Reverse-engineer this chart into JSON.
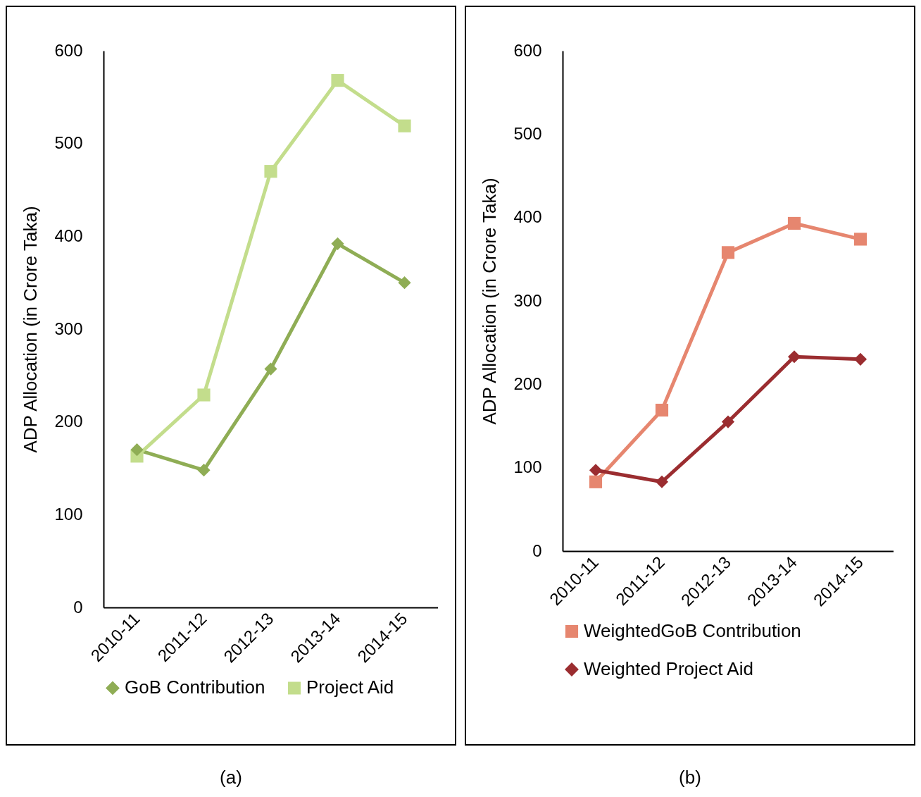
{
  "chart_data": [
    {
      "type": "line",
      "ylabel": "ADP Allocation (in Crore Taka)",
      "categories": [
        "2010-11",
        "2011-12",
        "2012-13",
        "2013-14",
        "2014-15"
      ],
      "ylim": [
        0,
        600
      ],
      "yticks": [
        0,
        100,
        200,
        300,
        400,
        500,
        600
      ],
      "legend": "bottom",
      "grid": false,
      "annotations": [
        "(a)"
      ],
      "series": [
        {
          "name": "GoB Contribution",
          "color": "#8fad55",
          "marker": "diamond",
          "values": [
            170,
            148,
            257,
            392,
            350
          ]
        },
        {
          "name": "Project Aid",
          "color": "#c3dd8c",
          "marker": "square",
          "values": [
            163,
            229,
            470,
            568,
            519
          ]
        }
      ]
    },
    {
      "type": "line",
      "ylabel": "ADP Allocation (in Crore Taka)",
      "categories": [
        "2010-11",
        "2011-12",
        "2012-13",
        "2013-14",
        "2014-15"
      ],
      "ylim": [
        0,
        600
      ],
      "yticks": [
        0,
        100,
        200,
        300,
        400,
        500,
        600
      ],
      "legend": "bottom",
      "grid": false,
      "annotations": [
        "(b)"
      ],
      "series": [
        {
          "name": "WeightedGoB Contribution",
          "color": "#e6866f",
          "marker": "square",
          "values": [
            83,
            169,
            358,
            393,
            374
          ]
        },
        {
          "name": "Weighted Project Aid",
          "color": "#9b2d30",
          "marker": "diamond",
          "values": [
            97,
            83,
            155,
            233,
            230
          ]
        }
      ]
    }
  ]
}
